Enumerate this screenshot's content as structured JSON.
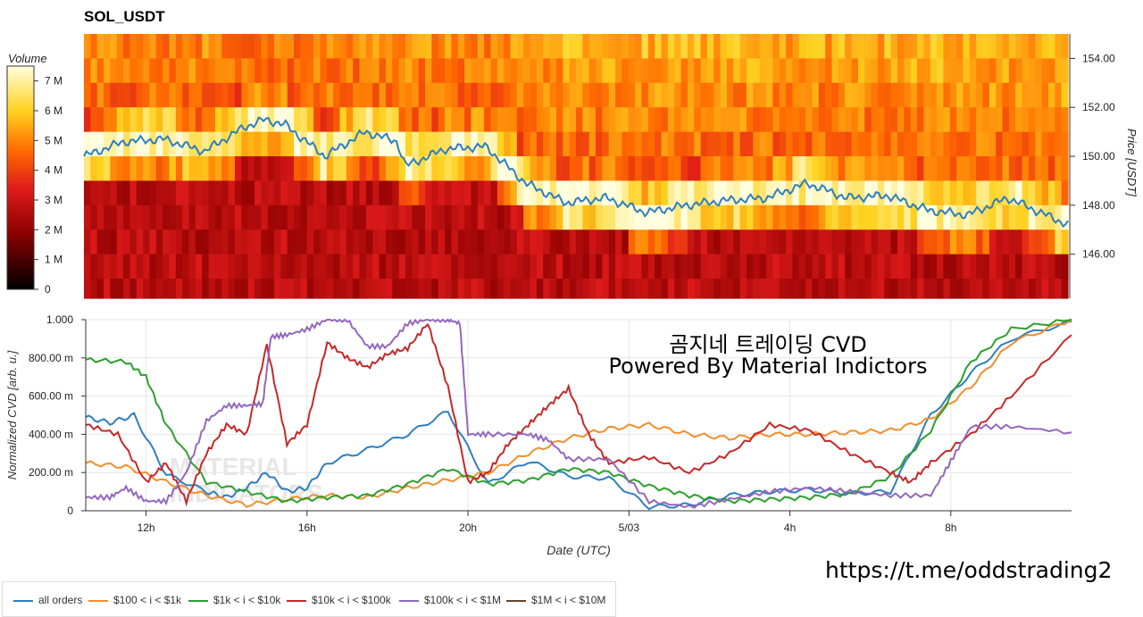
{
  "title": "SOL_USDT",
  "overlay": {
    "line1": "곰지네 트레이딩 CVD",
    "line2": "Powered By Material Indictors",
    "link": "https://t.me/oddstrading2"
  },
  "chart_data": [
    {
      "type": "heatmap",
      "title": "SOL_USDT",
      "ylabel": "Price [USDT]",
      "ylim": [
        144.2,
        155.0
      ],
      "yticks": [
        "146.00",
        "148.00",
        "150.00",
        "152.00",
        "154.00"
      ],
      "colorbar": {
        "label": "Volume",
        "ticks": [
          "0",
          "1 M",
          "2 M",
          "3 M",
          "4 M",
          "5 M",
          "6 M",
          "7 M"
        ],
        "range": [
          0,
          7.5
        ]
      },
      "colors": [
        "#000000",
        "#8b0000",
        "#e01b1b",
        "#ff6a00",
        "#ffd21f",
        "#ffffe0"
      ],
      "price_line": {
        "color": "#2e7ebf",
        "x": [
          0,
          1,
          2,
          3,
          4,
          4.5,
          5,
          6,
          7,
          7.8,
          8,
          9,
          10,
          11,
          12,
          13,
          14,
          15,
          16,
          17,
          18,
          19,
          20,
          21,
          22,
          23,
          24.5
        ],
        "y": [
          150.0,
          150.6,
          150.7,
          150.2,
          151.2,
          151.5,
          151.3,
          150.0,
          151.0,
          150.6,
          149.6,
          150.3,
          150.4,
          148.9,
          148.1,
          148.3,
          147.7,
          148.0,
          148.2,
          148.3,
          148.9,
          148.3,
          148.4,
          147.8,
          147.6,
          148.3,
          147.2
        ]
      }
    },
    {
      "type": "line",
      "xlabel": "Date (UTC)",
      "ylabel": "Normalized CVD [arb. u.]",
      "ylim": [
        0,
        1.0
      ],
      "yticks": [
        "0",
        "200.00 m",
        "400.00 m",
        "600.00 m",
        "800.00 m",
        "1.000"
      ],
      "xlim": [
        0,
        24.5
      ],
      "xticks": [
        {
          "x": 1.5,
          "label": "12h"
        },
        {
          "x": 5.5,
          "label": "16h"
        },
        {
          "x": 9.5,
          "label": "20h"
        },
        {
          "x": 13.5,
          "label": "5/03"
        },
        {
          "x": 17.5,
          "label": "4h"
        },
        {
          "x": 21.5,
          "label": "8h"
        }
      ],
      "series": [
        {
          "name": "all orders",
          "color": "#2e7ebf",
          "x": [
            0,
            0.6,
            1.2,
            2,
            3,
            3.5,
            4,
            4.5,
            5,
            5.5,
            6,
            7,
            8,
            9,
            10,
            11,
            12,
            13,
            14,
            15,
            16,
            17,
            18,
            19,
            20,
            21,
            22,
            23,
            24.5
          ],
          "y": [
            0.49,
            0.46,
            0.5,
            0.19,
            0.1,
            0.07,
            0.12,
            0.2,
            0.1,
            0.12,
            0.25,
            0.32,
            0.4,
            0.52,
            0.14,
            0.26,
            0.18,
            0.17,
            0.02,
            0.03,
            0.08,
            0.1,
            0.11,
            0.09,
            0.1,
            0.5,
            0.72,
            0.9,
            0.99
          ]
        },
        {
          "name": "$100 < i < $1k",
          "color": "#f28e2b",
          "x": [
            0,
            1,
            2,
            3,
            4,
            5,
            6,
            7,
            8,
            9,
            10,
            11,
            12,
            13,
            14,
            15,
            16,
            17,
            18,
            19,
            20,
            21,
            22,
            23,
            24.5
          ],
          "y": [
            0.25,
            0.23,
            0.15,
            0.08,
            0.03,
            0.06,
            0.08,
            0.07,
            0.12,
            0.16,
            0.2,
            0.3,
            0.38,
            0.43,
            0.45,
            0.4,
            0.38,
            0.4,
            0.4,
            0.41,
            0.42,
            0.48,
            0.65,
            0.88,
            1.0
          ]
        },
        {
          "name": "$1k < i < $10k",
          "color": "#2ca02c",
          "x": [
            0,
            1,
            1.5,
            2,
            3,
            4,
            5,
            6,
            7,
            8,
            9,
            10,
            11,
            12,
            13,
            14,
            15,
            16,
            17,
            18,
            19,
            20,
            21,
            22,
            23,
            24.5
          ],
          "y": [
            0.79,
            0.78,
            0.7,
            0.45,
            0.15,
            0.1,
            0.05,
            0.07,
            0.08,
            0.14,
            0.22,
            0.14,
            0.16,
            0.22,
            0.2,
            0.13,
            0.08,
            0.05,
            0.06,
            0.07,
            0.09,
            0.18,
            0.42,
            0.78,
            0.95,
            1.0
          ]
        },
        {
          "name": "$10k < i < $100k",
          "color": "#c62828",
          "x": [
            0,
            0.8,
            1.5,
            2,
            2.5,
            3,
            3.5,
            4,
            4.5,
            5,
            5.5,
            6,
            6.5,
            7,
            7.5,
            8,
            8.5,
            9,
            9.5,
            10,
            10.5,
            11,
            11.5,
            12,
            12.5,
            13,
            14,
            15,
            16,
            17,
            18,
            19,
            20,
            20.5,
            21,
            22,
            23,
            24.5
          ],
          "y": [
            0.45,
            0.4,
            0.15,
            0.25,
            0.05,
            0.3,
            0.45,
            0.4,
            0.87,
            0.35,
            0.45,
            0.88,
            0.8,
            0.75,
            0.82,
            0.85,
            0.98,
            0.65,
            0.15,
            0.2,
            0.35,
            0.45,
            0.55,
            0.64,
            0.4,
            0.25,
            0.28,
            0.2,
            0.3,
            0.45,
            0.42,
            0.3,
            0.2,
            0.15,
            0.25,
            0.4,
            0.6,
            0.92
          ]
        },
        {
          "name": "$100k < i < $1M",
          "color": "#9467bd",
          "x": [
            0,
            0.6,
            1,
            1.5,
            2,
            2.5,
            3,
            3.5,
            4,
            4.4,
            4.6,
            5,
            5.5,
            6,
            6.5,
            7,
            7.5,
            8,
            8.5,
            9,
            9.3,
            9.5,
            10,
            11,
            11.5,
            12,
            13,
            14,
            15,
            16,
            17,
            18,
            19,
            20,
            21,
            21.5,
            22,
            23,
            24.5
          ],
          "y": [
            0.07,
            0.07,
            0.12,
            0.05,
            0.05,
            0.2,
            0.47,
            0.55,
            0.55,
            0.56,
            0.91,
            0.92,
            0.95,
            1.0,
            1.0,
            0.86,
            0.86,
            0.98,
            1.0,
            1.0,
            0.98,
            0.4,
            0.4,
            0.4,
            0.37,
            0.27,
            0.27,
            0.05,
            0.02,
            0.06,
            0.1,
            0.12,
            0.1,
            0.08,
            0.08,
            0.26,
            0.44,
            0.44,
            0.41
          ]
        },
        {
          "name": "$1M < i < $10M",
          "color": "#6b4226",
          "x": [],
          "y": []
        }
      ]
    }
  ]
}
